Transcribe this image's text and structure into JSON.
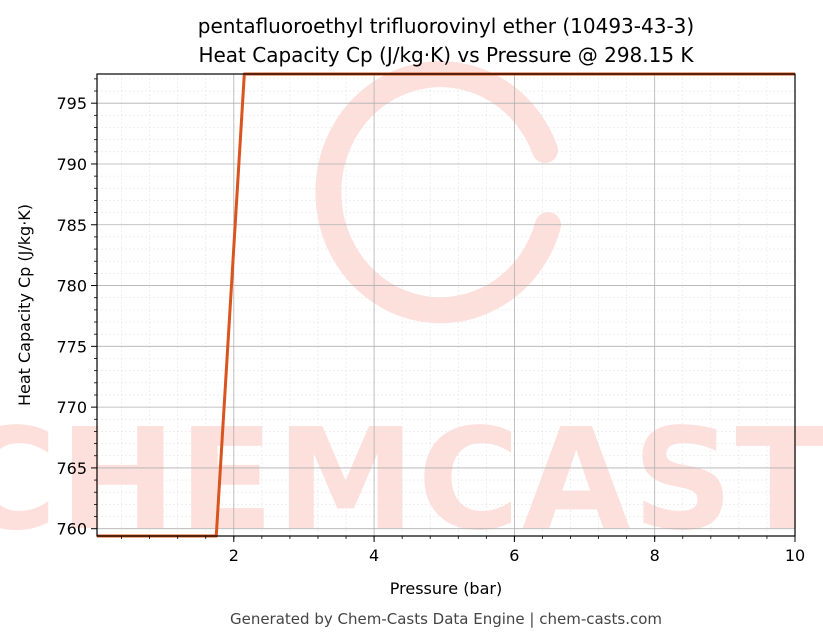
{
  "chart_data": {
    "type": "line",
    "title_lines": [
      "pentafluoroethyl trifluorovinyl ether (10493-43-3)",
      "Heat Capacity Cp (J/kg·K) vs Pressure @ 298.15 K"
    ],
    "xlabel": "Pressure (bar)",
    "ylabel": "Heat Capacity Cp (J/kg·K)",
    "xlim": [
      0.05,
      10
    ],
    "ylim": [
      759.4,
      797.4
    ],
    "xticks": [
      2,
      4,
      6,
      8,
      10
    ],
    "yticks": [
      760,
      765,
      770,
      775,
      780,
      785,
      790,
      795
    ],
    "grid": true,
    "series": [
      {
        "color": "#d9541e",
        "x": [
          0.05,
          1.75,
          2.15,
          10
        ],
        "y": [
          759.4,
          759.4,
          797.4,
          797.4
        ]
      }
    ]
  },
  "watermark": {
    "text": "CHEMCASTS",
    "color": "#fde0dc"
  },
  "footer": {
    "text": "Generated by Chem-Casts Data Engine | chem-casts.com"
  }
}
